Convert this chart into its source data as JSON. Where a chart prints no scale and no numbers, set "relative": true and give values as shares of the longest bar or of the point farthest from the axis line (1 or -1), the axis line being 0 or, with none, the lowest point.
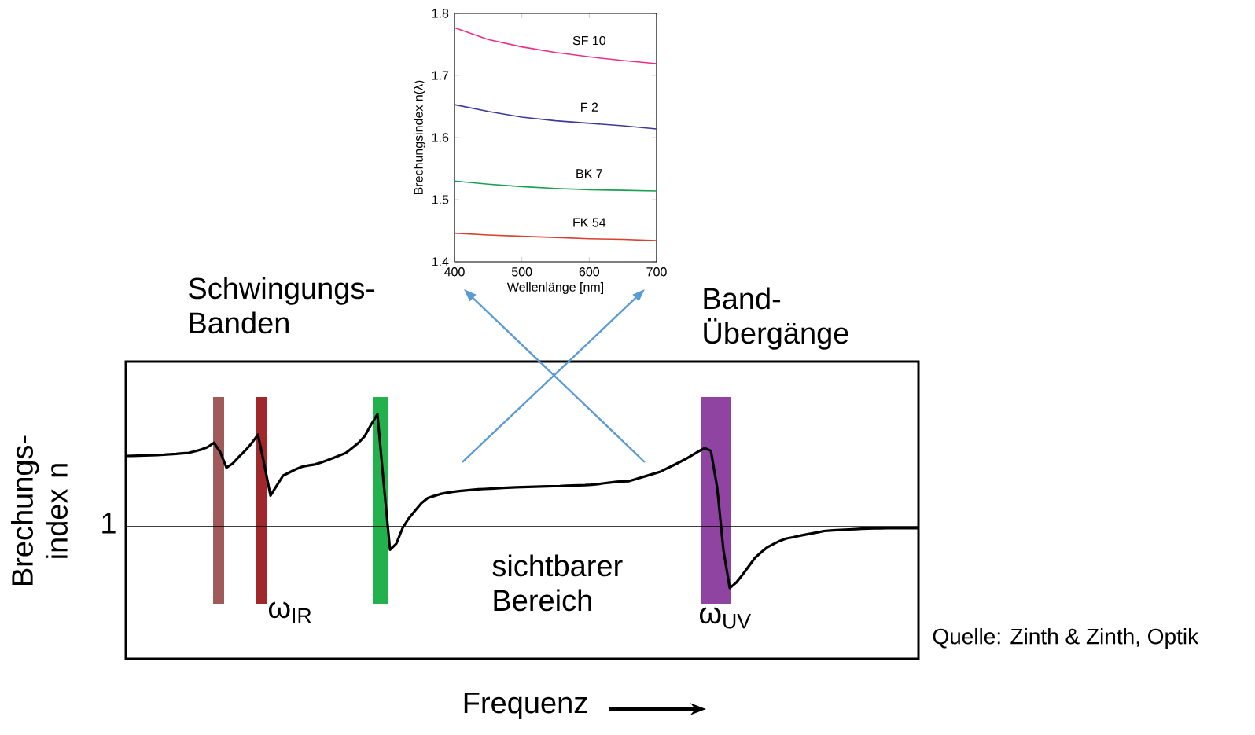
{
  "chart_data": [
    {
      "type": "line",
      "relative": true,
      "xlabel": "Frequenz",
      "ylabel": "Brechungs- index n",
      "categories": [
        null,
        null,
        null,
        null,
        null,
        null,
        null,
        null,
        null,
        null,
        null,
        null,
        null,
        null,
        null,
        null,
        null,
        null,
        null,
        null,
        null,
        null,
        null,
        null,
        null,
        null,
        null,
        null,
        null,
        null,
        null,
        null,
        null,
        null,
        null,
        null,
        null,
        null,
        null,
        null,
        null,
        null,
        null,
        null,
        null,
        null,
        null,
        null,
        null,
        null,
        null,
        null,
        null,
        null,
        null,
        null,
        null,
        null,
        null,
        null,
        null,
        null,
        null,
        null,
        null,
        null,
        null,
        null,
        null,
        null,
        null,
        null,
        null,
        null,
        null,
        null,
        null,
        null,
        null,
        null,
        null,
        null,
        null,
        null,
        null,
        null,
        null,
        null,
        null,
        null,
        null,
        null,
        null,
        null,
        null,
        null,
        null,
        null,
        null,
        null,
        null,
        null,
        null,
        null,
        null,
        null,
        null,
        null,
        null,
        null,
        null,
        null,
        null,
        null,
        null,
        null,
        null,
        null,
        null,
        null,
        null,
        null,
        null,
        null,
        null,
        null,
        null
      ],
      "series": [
        {
          "color": "#000000",
          "values": [
            0.76,
            0.761,
            0.762,
            0.763,
            0.764,
            0.765,
            0.767,
            0.77,
            0.772,
            0.775,
            0.778,
            0.787,
            0.797,
            0.811,
            0.836,
            0.783,
            0.693,
            0.717,
            0.756,
            0.792,
            0.833,
            0.883,
            0.712,
            0.532,
            0.59,
            0.647,
            0.665,
            0.683,
            0.698,
            0.705,
            0.711,
            0.722,
            0.735,
            0.749,
            0.763,
            0.778,
            0.807,
            0.836,
            0.875,
            0.941,
            1,
            0.6,
            0.22,
            0.255,
            0.345,
            0.402,
            0.446,
            0.489,
            0.518,
            0.53,
            0.541,
            0.548,
            0.554,
            0.558,
            0.562,
            0.565,
            0.568,
            0.57,
            0.572,
            0.574,
            0.576,
            0.578,
            0.58,
            0.581,
            0.582,
            0.583,
            0.584,
            0.585,
            0.586,
            0.587,
            0.589,
            0.59,
            0.591,
            0.592,
            0.594,
            0.598,
            0.603,
            0.607,
            0.611,
            0.614,
            0.615,
            0.626,
            0.637,
            0.648,
            0.659,
            0.67,
            0.688,
            0.706,
            0.724,
            0.743,
            0.764,
            0.786,
            0.805,
            0.79,
            0.579,
            0.217,
            0,
            0.03,
            0.075,
            0.124,
            0.173,
            0.206,
            0.235,
            0.254,
            0.272,
            0.285,
            0.292,
            0.3,
            0.307,
            0.314,
            0.321,
            0.328,
            0.331,
            0.333,
            0.335,
            0.337,
            0.339,
            0.341,
            0.342,
            0.343,
            0.343,
            0.344,
            0.344,
            0.344,
            0.344,
            0.344,
            0.344
          ]
        }
      ],
      "ref_lines": [
        {
          "axis": "y",
          "value": 0.353,
          "color": "#000000"
        }
      ],
      "annotations": [
        "Schwingungs- Banden",
        "Band- Übergänge",
        "sichtbarer Bereich",
        "ω$_{IR}$",
        "ω$_{UV}$",
        "Quelle: Zinth & Zinth, Optik",
        "1"
      ]
    },
    {
      "type": "line",
      "xlabel": "Wellenlänge [nm]",
      "ylabel": "Brechungsindex n(λ)",
      "x": [
        400,
        450,
        500,
        550,
        600,
        650,
        700
      ],
      "xlim": [
        400,
        700
      ],
      "xticks": [
        400,
        500,
        600,
        700
      ],
      "ylim": [
        1.4,
        1.8
      ],
      "yticks": [
        1.4,
        1.5,
        1.6,
        1.7,
        1.8
      ],
      "series": [
        {
          "name": "SF 10",
          "color": "#e8308a",
          "values": [
            1.777,
            1.758,
            1.746,
            1.737,
            1.73,
            1.724,
            1.719
          ]
        },
        {
          "name": "F 2",
          "color": "#3a3a9a",
          "values": [
            1.653,
            1.642,
            1.633,
            1.627,
            1.623,
            1.619,
            1.614
          ]
        },
        {
          "name": "BK 7",
          "color": "#1aa050",
          "values": [
            1.53,
            1.525,
            1.521,
            1.518,
            1.516,
            1.515,
            1.514
          ]
        },
        {
          "name": "FK 54",
          "color": "#d84030",
          "values": [
            1.446,
            1.443,
            1.441,
            1.439,
            1.437,
            1.436,
            1.434
          ]
        }
      ]
    }
  ]
}
